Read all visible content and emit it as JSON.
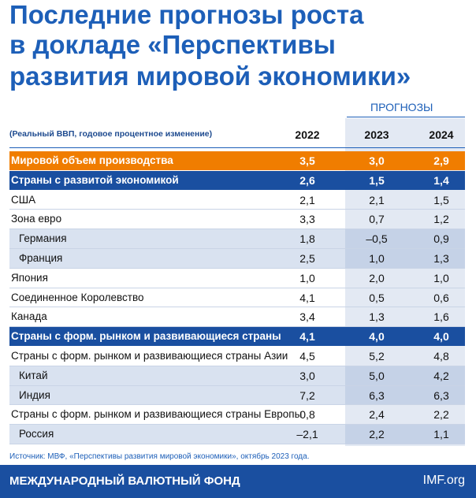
{
  "header": {
    "title": [
      "Последние прогнозы роста",
      "в докладе «Перспективы",
      "развития мировой экономики»"
    ]
  },
  "table": {
    "forecasts_label": "ПРОГНОЗЫ",
    "note": "(Реальный ВВП, годовое процентное изменение)",
    "years": [
      "2022",
      "2023",
      "2024"
    ],
    "rows": [
      {
        "label": "Мировой объем производства",
        "values": [
          "3,5",
          "3,0",
          "2,9"
        ]
      },
      {
        "label": "Страны с развитой экономикой",
        "values": [
          "2,6",
          "1,5",
          "1,4"
        ]
      },
      {
        "label": "США",
        "values": [
          "2,1",
          "2,1",
          "1,5"
        ]
      },
      {
        "label": "Зона евро",
        "values": [
          "3,3",
          "0,7",
          "1,2"
        ]
      },
      {
        "label": "Германия",
        "values": [
          "1,8",
          "–0,5",
          "0,9"
        ]
      },
      {
        "label": "Франция",
        "values": [
          "2,5",
          "1,0",
          "1,3"
        ]
      },
      {
        "label": "Япония",
        "values": [
          "1,0",
          "2,0",
          "1,0"
        ]
      },
      {
        "label": "Соединенное Королевство",
        "values": [
          "4,1",
          "0,5",
          "0,6"
        ]
      },
      {
        "label": "Канада",
        "values": [
          "3,4",
          "1,3",
          "1,6"
        ]
      },
      {
        "label": "Страны с форм. рынком и развивающиеся страны",
        "values": [
          "4,1",
          "4,0",
          "4,0"
        ]
      },
      {
        "label": "Страны с форм. рынком и развивающиеся страны Азии",
        "values": [
          "4,5",
          "5,2",
          "4,8"
        ]
      },
      {
        "label": "Китай",
        "values": [
          "3,0",
          "5,0",
          "4,2"
        ]
      },
      {
        "label": "Индия",
        "values": [
          "7,2",
          "6,3",
          "6,3"
        ]
      },
      {
        "label": "Страны с форм. рынком и развивающиеся страны Европы",
        "values": [
          "0,8",
          "2,4",
          "2,2"
        ]
      },
      {
        "label": "Россия",
        "values": [
          "–2,1",
          "2,2",
          "1,1"
        ]
      }
    ],
    "source": "Источник: МВФ, «Перспективы развития мировой экономики», октябрь 2023 года."
  },
  "footer": {
    "org": "МЕЖДУНАРОДНЫЙ ВАЛЮТНЫЙ ФОНД",
    "site": "IMF.org"
  }
}
